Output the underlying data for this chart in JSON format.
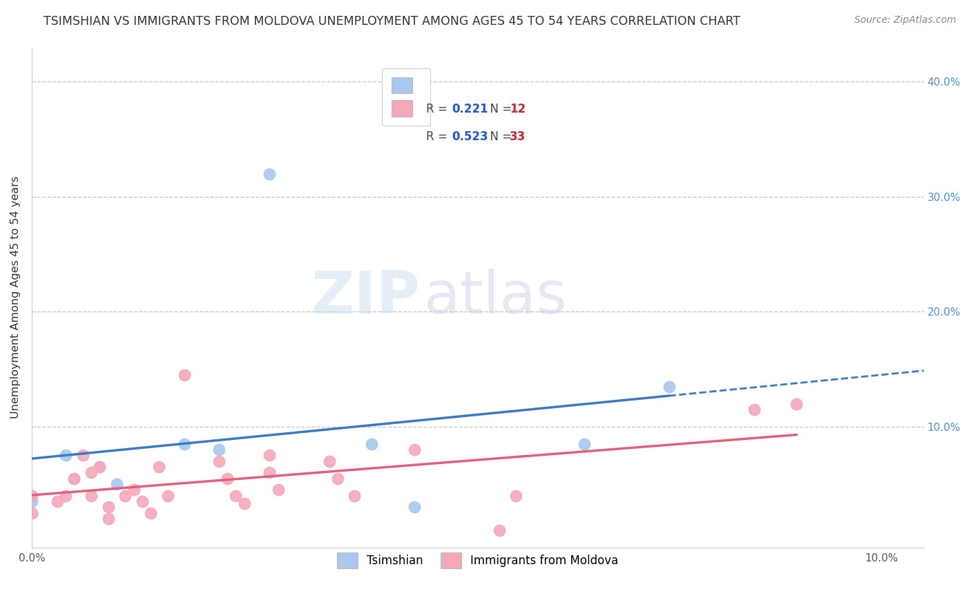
{
  "title": "TSIMSHIAN VS IMMIGRANTS FROM MOLDOVA UNEMPLOYMENT AMONG AGES 45 TO 54 YEARS CORRELATION CHART",
  "source": "Source: ZipAtlas.com",
  "ylabel": "Unemployment Among Ages 45 to 54 years",
  "xlim": [
    0.0,
    0.105
  ],
  "ylim": [
    -0.005,
    0.43
  ],
  "xticks": [
    0.0,
    0.1
  ],
  "xtick_labels": [
    "0.0%",
    "10.0%"
  ],
  "ytick_positions": [
    0.1,
    0.2,
    0.3,
    0.4
  ],
  "ytick_labels": [
    "10.0%",
    "20.0%",
    "30.0%",
    "40.0%"
  ],
  "grid_color": "#c8c8c8",
  "background_color": "#ffffff",
  "tsimshian_color": "#a8c8f0",
  "moldova_color": "#f5a8b8",
  "tsimshian_line_color": "#3a7abf",
  "moldova_line_color": "#e0607a",
  "tsimshian_R": 0.221,
  "tsimshian_N": 12,
  "moldova_R": 0.523,
  "moldova_N": 33,
  "legend_R_color": "#2255cc",
  "legend_N_color": "#cc2233",
  "tsimshian_scatter": [
    [
      0.0,
      0.035
    ],
    [
      0.004,
      0.075
    ],
    [
      0.005,
      0.055
    ],
    [
      0.008,
      0.065
    ],
    [
      0.01,
      0.05
    ],
    [
      0.018,
      0.085
    ],
    [
      0.022,
      0.08
    ],
    [
      0.028,
      0.32
    ],
    [
      0.04,
      0.085
    ],
    [
      0.045,
      0.03
    ],
    [
      0.065,
      0.085
    ],
    [
      0.075,
      0.135
    ]
  ],
  "moldova_scatter": [
    [
      0.0,
      0.04
    ],
    [
      0.0,
      0.025
    ],
    [
      0.003,
      0.035
    ],
    [
      0.004,
      0.04
    ],
    [
      0.005,
      0.055
    ],
    [
      0.006,
      0.075
    ],
    [
      0.007,
      0.06
    ],
    [
      0.007,
      0.04
    ],
    [
      0.008,
      0.065
    ],
    [
      0.009,
      0.03
    ],
    [
      0.009,
      0.02
    ],
    [
      0.011,
      0.04
    ],
    [
      0.012,
      0.045
    ],
    [
      0.013,
      0.035
    ],
    [
      0.014,
      0.025
    ],
    [
      0.015,
      0.065
    ],
    [
      0.016,
      0.04
    ],
    [
      0.018,
      0.145
    ],
    [
      0.022,
      0.07
    ],
    [
      0.023,
      0.055
    ],
    [
      0.024,
      0.04
    ],
    [
      0.025,
      0.033
    ],
    [
      0.028,
      0.075
    ],
    [
      0.028,
      0.06
    ],
    [
      0.029,
      0.045
    ],
    [
      0.035,
      0.07
    ],
    [
      0.036,
      0.055
    ],
    [
      0.038,
      0.04
    ],
    [
      0.045,
      0.08
    ],
    [
      0.055,
      0.01
    ],
    [
      0.057,
      0.04
    ],
    [
      0.085,
      0.115
    ],
    [
      0.09,
      0.12
    ]
  ],
  "watermark_ZIP": "ZIP",
  "watermark_atlas": "atlas",
  "title_fontsize": 12.5,
  "label_fontsize": 11.5,
  "tick_fontsize": 11,
  "legend_fontsize": 12,
  "source_fontsize": 10
}
